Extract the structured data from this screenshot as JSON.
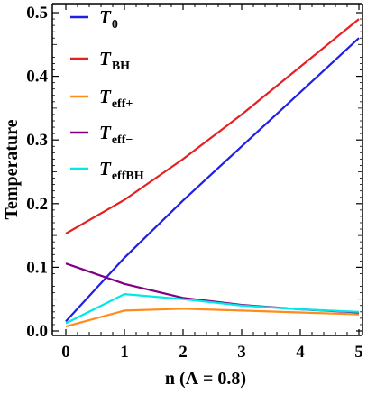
{
  "chart_data": {
    "type": "line",
    "xlabel": "n (Λ = 0.8)",
    "ylabel": "Temperature",
    "xlim": [
      0,
      5
    ],
    "ylim": [
      0,
      0.5
    ],
    "x": [
      0,
      1,
      2,
      3,
      4,
      5
    ],
    "xticks": [
      "0",
      "1",
      "2",
      "3",
      "4",
      "5"
    ],
    "yticks": [
      "0.0",
      "0.1",
      "0.2",
      "0.3",
      "0.4",
      "0.5"
    ],
    "grid": false,
    "legend_position": "top-left",
    "series": [
      {
        "name": "T",
        "sub": "0",
        "color": "#1f1fe6",
        "values": [
          0.015,
          0.115,
          0.205,
          0.29,
          0.375,
          0.46
        ]
      },
      {
        "name": "T",
        "sub": "BH",
        "color": "#e62020",
        "values": [
          0.153,
          0.206,
          0.27,
          0.34,
          0.415,
          0.49
        ]
      },
      {
        "name": "T",
        "sub": "eff+",
        "color": "#ff8c1a",
        "values": [
          0.007,
          0.032,
          0.035,
          0.032,
          0.029,
          0.026
        ]
      },
      {
        "name": "T",
        "sub": "eff−",
        "color": "#800080",
        "values": [
          0.106,
          0.074,
          0.052,
          0.041,
          0.034,
          0.029
        ]
      },
      {
        "name": "T",
        "sub": "effBH",
        "color": "#00e8e8",
        "values": [
          0.012,
          0.058,
          0.05,
          0.04,
          0.034,
          0.03
        ]
      }
    ]
  }
}
